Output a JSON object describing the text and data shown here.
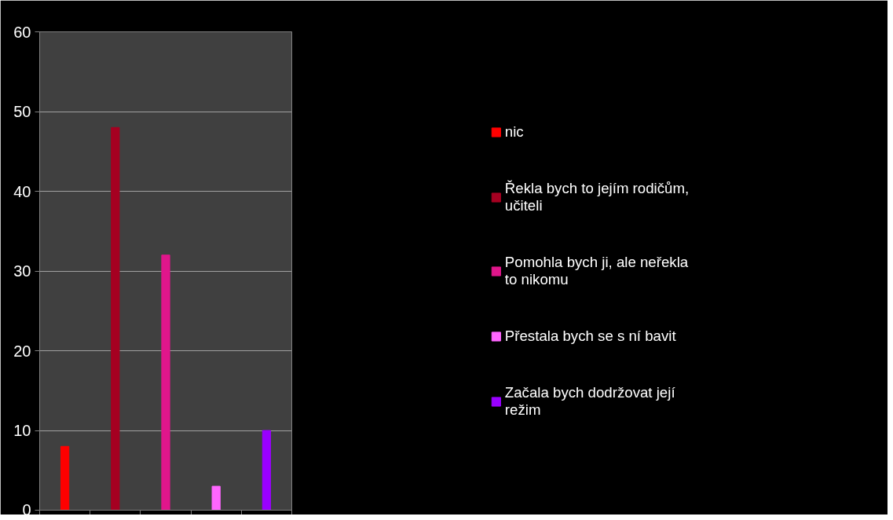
{
  "chart_data": {
    "type": "bar",
    "categories": [
      null,
      null,
      null,
      null,
      null
    ],
    "series": [
      {
        "name": "nic",
        "color": "#ff0000",
        "values": [
          8,
          null,
          null,
          null,
          null
        ]
      },
      {
        "name": "Řekla bych to jejím rodičům, učiteli",
        "color": "#a50021",
        "values": [
          null,
          48,
          null,
          null,
          null
        ]
      },
      {
        "name": "Pomohla bych ji, ale neřekla to nikomu",
        "color": "#e0168b",
        "values": [
          null,
          null,
          32,
          null,
          null
        ]
      },
      {
        "name": "Přestala bych se s ní bavit",
        "color": "#ff66ff",
        "values": [
          null,
          null,
          null,
          3,
          null
        ]
      },
      {
        "name": "Začala bych dodržovat její režim",
        "color": "#9900ff",
        "values": [
          null,
          null,
          null,
          null,
          10
        ]
      }
    ],
    "ylim": [
      0,
      60
    ],
    "yticks": [
      0,
      10,
      20,
      30,
      40,
      50,
      60
    ],
    "grid": "y",
    "legend": "right"
  }
}
